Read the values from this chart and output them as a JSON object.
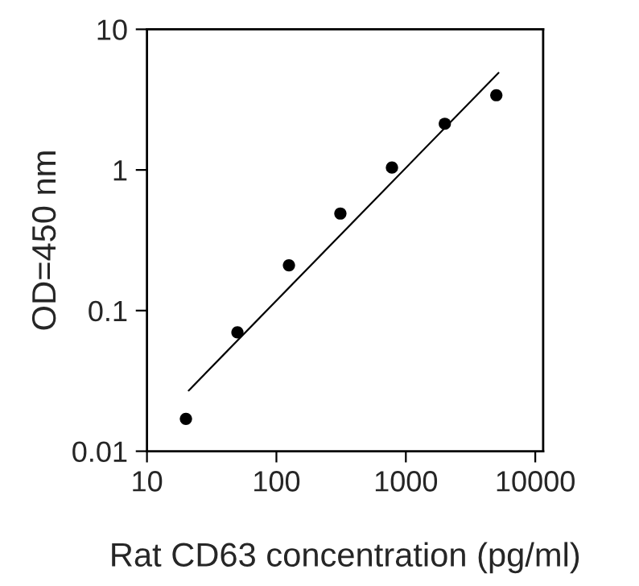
{
  "chart_data": {
    "type": "scatter",
    "xlabel": "Rat CD63 concentration (pg/ml)",
    "ylabel": "OD=450 nm",
    "log": "xy",
    "xlim": [
      10,
      11500
    ],
    "ylim": [
      0.01,
      10
    ],
    "xticks": [
      10,
      100,
      1000,
      10000
    ],
    "yticks": [
      0.01,
      0.1,
      1,
      10
    ],
    "grid": false,
    "legend": false,
    "series": [
      {
        "marker": "circle",
        "color": "#000000",
        "x": [
          20,
          50,
          125,
          312,
          781,
          2000,
          5000
        ],
        "values": [
          0.017,
          0.07,
          0.21,
          0.49,
          1.04,
          2.13,
          3.4
        ]
      },
      {
        "type": "line",
        "color": "#000000",
        "line_style": "solid",
        "x": [
          21,
          5200
        ],
        "values": [
          0.027,
          4.9
        ]
      }
    ]
  }
}
